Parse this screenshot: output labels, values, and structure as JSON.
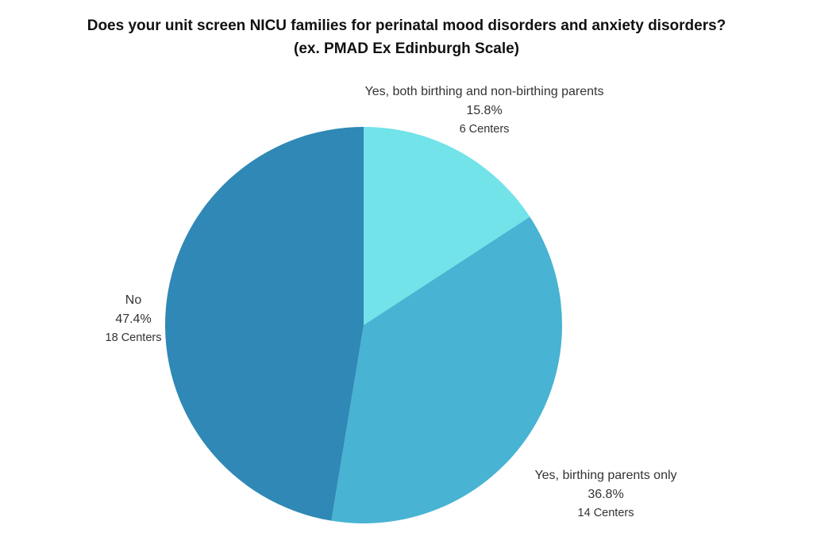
{
  "chart_data": {
    "type": "pie",
    "title": "Does your unit screen NICU families for perinatal mood disorders and anxiety disorders?",
    "subtitle": "(ex. PMAD Ex Edinburgh Scale)",
    "start_angle_deg": 0,
    "direction": "clockwise",
    "slices": [
      {
        "label": "Yes, both birthing and non-birthing parents",
        "value": 15.8,
        "percent_label": "15.8%",
        "count_label": "6 Centers",
        "color": "#72E3E8"
      },
      {
        "label": "Yes, birthing parents only",
        "value": 36.8,
        "percent_label": "36.8%",
        "count_label": "14 Centers",
        "color": "#48B3D3"
      },
      {
        "label": "No",
        "value": 47.4,
        "percent_label": "47.4%",
        "count_label": "18 Centers",
        "color": "#2F88B5"
      }
    ]
  }
}
